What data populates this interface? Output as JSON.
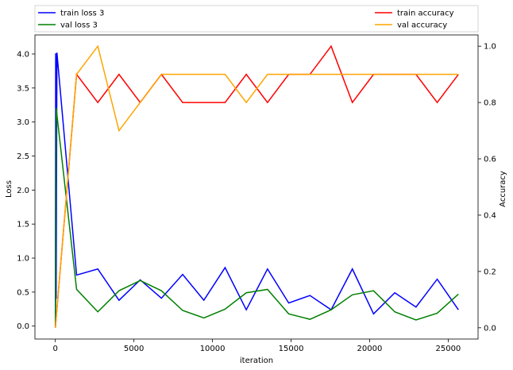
{
  "chart_data": {
    "type": "line",
    "xlabel": "iteration",
    "ylabel_left": "Loss",
    "ylabel_right": "Accuracy",
    "xlim": [
      -1300,
      26900
    ],
    "ylim_left": [
      -0.19,
      4.28
    ],
    "ylim_right": [
      -0.04,
      1.04
    ],
    "x_ticks": [
      0,
      5000,
      10000,
      15000,
      20000,
      25000
    ],
    "y_ticks_left": [
      0.0,
      0.5,
      1.0,
      1.5,
      2.0,
      2.5,
      3.0,
      3.5,
      4.0
    ],
    "y_ticks_right": [
      0.0,
      0.2,
      0.4,
      0.6,
      0.8,
      1.0
    ],
    "grid": false,
    "legend": {
      "left": [
        "train loss 3",
        "val loss 3"
      ],
      "right": [
        "train accuracy",
        "val accuracy"
      ],
      "placement": "above-plot"
    },
    "series": [
      {
        "name": "train loss 3",
        "axis": "left",
        "color": "#0000ff",
        "x": [
          0,
          20,
          50,
          100,
          1350,
          2700,
          4050,
          5400,
          6750,
          8100,
          9450,
          10800,
          12150,
          13500,
          14850,
          16200,
          17550,
          18900,
          20250,
          21600,
          22950,
          24300,
          25650
        ],
        "values": [
          0.0,
          4.01,
          0.4,
          4.02,
          0.75,
          0.84,
          0.38,
          0.68,
          0.41,
          0.76,
          0.38,
          0.86,
          0.24,
          0.84,
          0.34,
          0.45,
          0.24,
          0.84,
          0.18,
          0.49,
          0.28,
          0.69,
          0.24
        ]
      },
      {
        "name": "val loss 3",
        "axis": "left",
        "color": "#008000",
        "x": [
          0,
          20,
          50,
          1350,
          2700,
          4050,
          5400,
          6750,
          8100,
          9450,
          10800,
          12150,
          13500,
          14850,
          16200,
          17550,
          18900,
          20250,
          21600,
          22950,
          24300,
          25650
        ],
        "values": [
          0.0,
          0.5,
          3.21,
          0.54,
          0.21,
          0.52,
          0.67,
          0.52,
          0.23,
          0.12,
          0.25,
          0.49,
          0.54,
          0.18,
          0.1,
          0.24,
          0.46,
          0.52,
          0.21,
          0.09,
          0.19,
          0.47
        ]
      },
      {
        "name": "train accuracy",
        "axis": "right",
        "color": "#ff0000",
        "x": [
          0,
          1350,
          2700,
          4050,
          5400,
          6750,
          8100,
          9450,
          10800,
          12150,
          13500,
          14850,
          16200,
          17550,
          18900,
          20250,
          21600,
          22950,
          24300,
          25650
        ],
        "values": [
          0.0,
          0.9,
          0.8,
          0.9,
          0.8,
          0.9,
          0.8,
          0.8,
          0.8,
          0.9,
          0.8,
          0.9,
          0.9,
          1.0,
          0.8,
          0.9,
          0.9,
          0.9,
          0.8,
          0.9
        ]
      },
      {
        "name": "val accuracy",
        "axis": "right",
        "color": "#ffa500",
        "x": [
          0,
          1350,
          2700,
          4050,
          5400,
          6750,
          8100,
          9450,
          10800,
          12150,
          13500,
          14850,
          16200,
          17550,
          18900,
          20250,
          21600,
          22950,
          24300,
          25650
        ],
        "values": [
          0.0,
          0.9,
          1.0,
          0.7,
          0.8,
          0.9,
          0.9,
          0.9,
          0.9,
          0.8,
          0.9,
          0.9,
          0.9,
          0.9,
          0.9,
          0.9,
          0.9,
          0.9,
          0.9,
          0.9
        ]
      }
    ]
  }
}
